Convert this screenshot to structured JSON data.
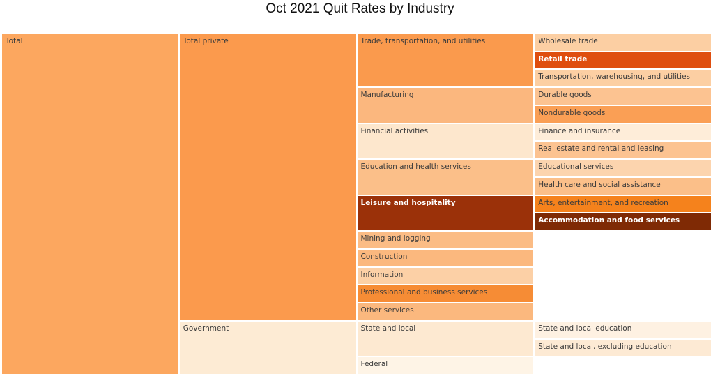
{
  "title": "Oct 2021 Quit Rates by Industry",
  "chart_data": {
    "type": "icicle",
    "title": "Oct 2021 Quit Rates by Industry",
    "orientation": "horizontal-left-to-right",
    "depth_count": 4,
    "leaf_row_count": 19,
    "legend": "none",
    "color_meaning": "darker red-brown = higher quit rate, lighter cream = lower quit rate",
    "text_color_default": "#3b3b3b",
    "text_color_inverse": "#ffffff",
    "nodes": [
      {
        "label": "Total",
        "parent": "",
        "depth": 0,
        "row": 0,
        "span": 19,
        "color": "#fca75f",
        "inverse": false
      },
      {
        "label": "Total private",
        "parent": "Total",
        "depth": 1,
        "row": 0,
        "span": 16,
        "color": "#fb9a4d",
        "inverse": false
      },
      {
        "label": "Government",
        "parent": "Total",
        "depth": 1,
        "row": 16,
        "span": 3,
        "color": "#fdebd4",
        "inverse": false
      },
      {
        "label": "Trade, transportation, and utilities",
        "parent": "Total private",
        "depth": 2,
        "row": 0,
        "span": 3,
        "color": "#fa9a4d",
        "inverse": false
      },
      {
        "label": "Manufacturing",
        "parent": "Total private",
        "depth": 2,
        "row": 3,
        "span": 2,
        "color": "#fbb77e",
        "inverse": false
      },
      {
        "label": "Financial activities",
        "parent": "Total private",
        "depth": 2,
        "row": 5,
        "span": 2,
        "color": "#fde7cd",
        "inverse": false
      },
      {
        "label": "Education and health services",
        "parent": "Total private",
        "depth": 2,
        "row": 7,
        "span": 2,
        "color": "#fbbf89",
        "inverse": false
      },
      {
        "label": "Leisure and hospitality",
        "parent": "Total private",
        "depth": 2,
        "row": 9,
        "span": 2,
        "color": "#9b3109",
        "inverse": true
      },
      {
        "label": "Mining and logging",
        "parent": "Total private",
        "depth": 2,
        "row": 11,
        "span": 1,
        "color": "#fbbc85",
        "inverse": false
      },
      {
        "label": "Construction",
        "parent": "Total private",
        "depth": 2,
        "row": 12,
        "span": 1,
        "color": "#fbb87e",
        "inverse": false
      },
      {
        "label": "Information",
        "parent": "Total private",
        "depth": 2,
        "row": 13,
        "span": 1,
        "color": "#fcd0a6",
        "inverse": false
      },
      {
        "label": "Professional and business services",
        "parent": "Total private",
        "depth": 2,
        "row": 14,
        "span": 1,
        "color": "#f68c35",
        "inverse": false
      },
      {
        "label": "Other services",
        "parent": "Total private",
        "depth": 2,
        "row": 15,
        "span": 1,
        "color": "#fbb87e",
        "inverse": false
      },
      {
        "label": "State and local",
        "parent": "Government",
        "depth": 2,
        "row": 16,
        "span": 2,
        "color": "#fde9d1",
        "inverse": false
      },
      {
        "label": "Federal",
        "parent": "Government",
        "depth": 2,
        "row": 18,
        "span": 1,
        "color": "#fef4e6",
        "inverse": false
      },
      {
        "label": "Wholesale trade",
        "parent": "Trade, transportation, and utilities",
        "depth": 3,
        "row": 0,
        "span": 1,
        "color": "#fccfa3",
        "inverse": false
      },
      {
        "label": "Retail trade",
        "parent": "Trade, transportation, and utilities",
        "depth": 3,
        "row": 1,
        "span": 1,
        "color": "#df4e0f",
        "inverse": true
      },
      {
        "label": "Transportation, warehousing, and utilities",
        "parent": "Trade, transportation, and utilities",
        "depth": 3,
        "row": 2,
        "span": 1,
        "color": "#fccfa3",
        "inverse": false
      },
      {
        "label": "Durable goods",
        "parent": "Manufacturing",
        "depth": 3,
        "row": 3,
        "span": 1,
        "color": "#fcc391",
        "inverse": false
      },
      {
        "label": "Nondurable goods",
        "parent": "Manufacturing",
        "depth": 3,
        "row": 4,
        "span": 1,
        "color": "#fa9f55",
        "inverse": false
      },
      {
        "label": "Finance and insurance",
        "parent": "Financial activities",
        "depth": 3,
        "row": 5,
        "span": 1,
        "color": "#feedd9",
        "inverse": false
      },
      {
        "label": "Real estate and rental and leasing",
        "parent": "Financial activities",
        "depth": 3,
        "row": 6,
        "span": 1,
        "color": "#fcc391",
        "inverse": false
      },
      {
        "label": "Educational services",
        "parent": "Education and health services",
        "depth": 3,
        "row": 7,
        "span": 1,
        "color": "#fcd4ae",
        "inverse": false
      },
      {
        "label": "Health care and social assistance",
        "parent": "Education and health services",
        "depth": 3,
        "row": 8,
        "span": 1,
        "color": "#fbbf89",
        "inverse": false
      },
      {
        "label": "Arts, entertainment, and recreation",
        "parent": "Leisure and hospitality",
        "depth": 3,
        "row": 9,
        "span": 1,
        "color": "#f5821c",
        "inverse": false
      },
      {
        "label": "Accommodation and food services",
        "parent": "Leisure and hospitality",
        "depth": 3,
        "row": 10,
        "span": 1,
        "color": "#7f2a05",
        "inverse": true
      },
      {
        "label": "State and local education",
        "parent": "State and local",
        "depth": 3,
        "row": 16,
        "span": 1,
        "color": "#fef1e2",
        "inverse": false
      },
      {
        "label": "State and local, excluding education",
        "parent": "State and local",
        "depth": 3,
        "row": 17,
        "span": 1,
        "color": "#fdead4",
        "inverse": false
      }
    ]
  }
}
